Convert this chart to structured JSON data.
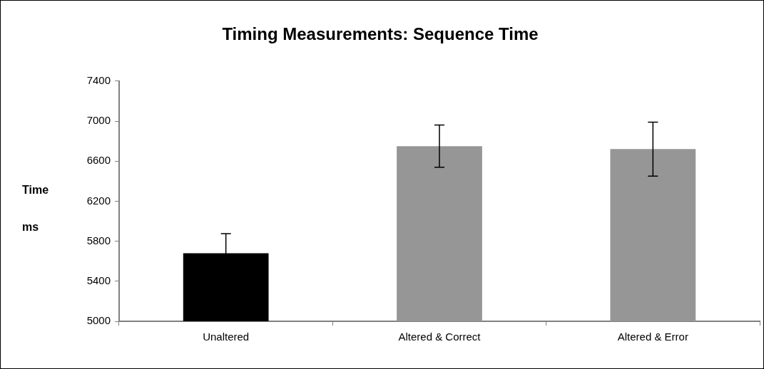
{
  "chart_data": {
    "type": "bar",
    "title": "Timing Measurements: Sequence Time",
    "ylabel": "Time ms",
    "categories": [
      "Unaltered",
      "Altered & Correct",
      "Altered & Error"
    ],
    "values": [
      5680,
      6750,
      6720
    ],
    "colors": [
      "#000000",
      "#969696",
      "#969696"
    ],
    "errors": [
      195,
      210,
      270
    ],
    "ylim": [
      5000,
      7400
    ],
    "yticks": [
      5000,
      5400,
      5800,
      6200,
      6600,
      7000,
      7400
    ],
    "grid": false,
    "legend": false
  }
}
